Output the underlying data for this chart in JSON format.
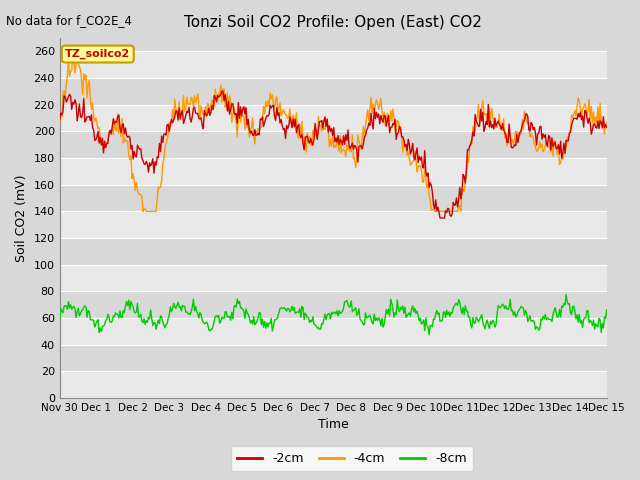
{
  "title": "Tonzi Soil CO2 Profile: Open (East) CO2",
  "subtitle": "No data for f_CO2E_4",
  "ylabel": "Soil CO2 (mV)",
  "xlabel": "Time",
  "ylim": [
    0,
    270
  ],
  "yticks": [
    0,
    20,
    40,
    60,
    80,
    100,
    120,
    140,
    160,
    180,
    200,
    220,
    240,
    260
  ],
  "xtick_labels": [
    "Nov 30",
    "Dec 1",
    "Dec 2",
    "Dec 3",
    "Dec 4",
    "Dec 5",
    "Dec 6",
    "Dec 7",
    "Dec 8",
    "Dec 9",
    "Dec 10",
    "Dec 11",
    "Dec 12",
    "Dec 13",
    "Dec 14",
    "Dec 15"
  ],
  "color_2cm": "#cc0000",
  "color_4cm": "#ff9900",
  "color_8cm": "#00cc00",
  "legend_label_2cm": "-2cm",
  "legend_label_4cm": "-4cm",
  "legend_label_8cm": "-8cm",
  "inset_label": "TZ_soilco2",
  "inset_bg": "#ffff99",
  "inset_border": "#cc9900",
  "fig_bg": "#d8d8d8",
  "plot_bg_light": "#e8e8e8",
  "plot_bg_dark": "#d8d8d8"
}
